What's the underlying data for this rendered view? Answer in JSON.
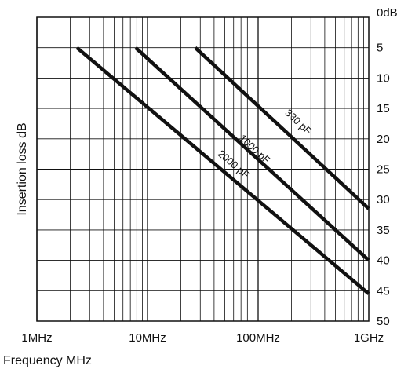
{
  "chart_data": {
    "type": "line",
    "title": "",
    "xlabel": "Frequency MHz",
    "ylabel": "Insertion loss dB",
    "x_scale": "log",
    "x_unit": "MHz",
    "xlim": [
      1,
      1000
    ],
    "ylim": [
      0,
      50
    ],
    "y_axis_position": "right",
    "y_inverted": true,
    "grid": true,
    "x_ticks": [
      {
        "value": 1,
        "label": "1MHz"
      },
      {
        "value": 10,
        "label": "10MHz"
      },
      {
        "value": 100,
        "label": "100MHz"
      },
      {
        "value": 1000,
        "label": "1GHz"
      }
    ],
    "y_ticks": [
      {
        "value": 0,
        "label": "0dB"
      },
      {
        "value": 5,
        "label": "5"
      },
      {
        "value": 10,
        "label": "10"
      },
      {
        "value": 15,
        "label": "15"
      },
      {
        "value": 20,
        "label": "20"
      },
      {
        "value": 25,
        "label": "25"
      },
      {
        "value": 30,
        "label": "30"
      },
      {
        "value": 35,
        "label": "35"
      },
      {
        "value": 40,
        "label": "40"
      },
      {
        "value": 45,
        "label": "45"
      },
      {
        "value": 50,
        "label": "50"
      }
    ],
    "series": [
      {
        "name": "330 pF",
        "x": [
          27,
          1000
        ],
        "y": [
          5,
          31.5
        ],
        "label_at": {
          "x": 210,
          "y": 18
        }
      },
      {
        "name": "1000 pF",
        "x": [
          7.8,
          1000
        ],
        "y": [
          5,
          40
        ],
        "label_at": {
          "x": 85,
          "y": 22.5
        }
      },
      {
        "name": "2000 pF",
        "x": [
          2.3,
          1000
        ],
        "y": [
          5,
          45.5
        ],
        "label_at": {
          "x": 55,
          "y": 25
        }
      }
    ],
    "line_color": "#111111"
  }
}
